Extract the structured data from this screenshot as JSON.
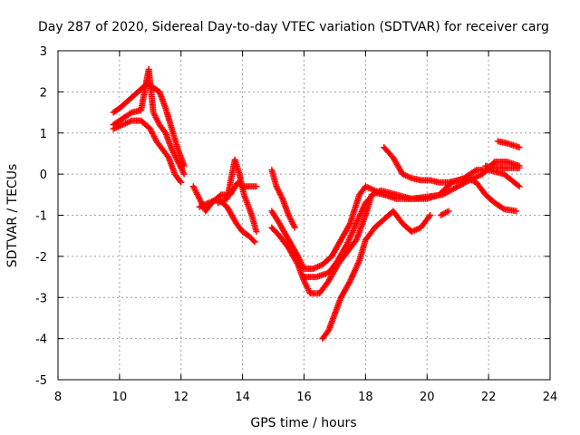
{
  "chart_data": {
    "type": "scatter",
    "title": "Day 287 of 2020, Sidereal Day-to-day VTEC variation (SDTVAR) for receiver carg",
    "xlabel": "GPS time / hours",
    "ylabel": "SDTVAR / TECUs",
    "xlim": [
      8,
      24
    ],
    "ylim": [
      -5,
      3
    ],
    "xticks": [
      8,
      10,
      12,
      14,
      16,
      18,
      20,
      22,
      24
    ],
    "yticks": [
      -5,
      -4,
      -3,
      -2,
      -1,
      0,
      1,
      2,
      3
    ],
    "grid": true,
    "marker": "+",
    "marker_color": "#ff0000",
    "series": [
      {
        "name": "track-1",
        "points": [
          [
            9.8,
            1.5
          ],
          [
            10.0,
            1.6
          ],
          [
            10.3,
            1.8
          ],
          [
            10.6,
            2.0
          ],
          [
            10.9,
            2.2
          ],
          [
            11.1,
            2.1
          ],
          [
            11.3,
            2.0
          ],
          [
            11.5,
            1.6
          ],
          [
            11.7,
            1.1
          ],
          [
            11.9,
            0.6
          ],
          [
            12.1,
            0.2
          ]
        ]
      },
      {
        "name": "track-2",
        "points": [
          [
            9.8,
            1.2
          ],
          [
            10.1,
            1.35
          ],
          [
            10.4,
            1.5
          ],
          [
            10.7,
            1.55
          ],
          [
            10.95,
            2.55
          ],
          [
            11.1,
            1.5
          ],
          [
            11.3,
            1.2
          ],
          [
            11.5,
            1.0
          ],
          [
            11.7,
            0.6
          ],
          [
            11.9,
            0.3
          ],
          [
            12.1,
            0.0
          ]
        ]
      },
      {
        "name": "track-3",
        "points": [
          [
            9.8,
            1.1
          ],
          [
            10.1,
            1.2
          ],
          [
            10.4,
            1.3
          ],
          [
            10.7,
            1.3
          ],
          [
            11.0,
            1.1
          ],
          [
            11.2,
            0.8
          ],
          [
            11.4,
            0.6
          ],
          [
            11.6,
            0.4
          ],
          [
            11.8,
            0.0
          ],
          [
            12.0,
            -0.2
          ]
        ]
      },
      {
        "name": "track-4",
        "points": [
          [
            12.4,
            -0.3
          ],
          [
            12.6,
            -0.6
          ],
          [
            12.8,
            -0.9
          ],
          [
            13.0,
            -0.7
          ],
          [
            13.3,
            -0.5
          ],
          [
            13.6,
            -0.5
          ],
          [
            13.85,
            -0.2
          ],
          [
            14.0,
            -0.3
          ],
          [
            14.2,
            -0.3
          ],
          [
            14.45,
            -0.3
          ]
        ]
      },
      {
        "name": "track-5",
        "points": [
          [
            12.6,
            -0.8
          ],
          [
            12.9,
            -0.7
          ],
          [
            13.2,
            -0.6
          ],
          [
            13.5,
            -0.8
          ],
          [
            13.8,
            -1.2
          ],
          [
            14.0,
            -1.4
          ],
          [
            14.2,
            -1.5
          ],
          [
            14.4,
            -1.65
          ]
        ]
      },
      {
        "name": "track-6",
        "points": [
          [
            13.2,
            -0.7
          ],
          [
            13.5,
            -0.6
          ],
          [
            13.75,
            0.35
          ],
          [
            13.9,
            0.0
          ],
          [
            14.05,
            -0.5
          ],
          [
            14.3,
            -1.0
          ],
          [
            14.45,
            -1.4
          ]
        ]
      },
      {
        "name": "track-7",
        "points": [
          [
            14.95,
            0.1
          ],
          [
            15.1,
            -0.3
          ],
          [
            15.3,
            -0.6
          ],
          [
            15.5,
            -1.0
          ],
          [
            15.7,
            -1.3
          ]
        ]
      },
      {
        "name": "track-8",
        "points": [
          [
            14.95,
            -0.9
          ],
          [
            15.2,
            -1.2
          ],
          [
            15.5,
            -1.6
          ],
          [
            15.8,
            -2.0
          ],
          [
            16.0,
            -2.3
          ],
          [
            16.3,
            -2.3
          ],
          [
            16.6,
            -2.2
          ],
          [
            16.9,
            -2.0
          ],
          [
            17.2,
            -1.6
          ],
          [
            17.5,
            -1.2
          ],
          [
            17.8,
            -0.5
          ],
          [
            18.0,
            -0.3
          ],
          [
            18.3,
            -0.4
          ],
          [
            18.6,
            -0.5
          ],
          [
            19.0,
            -0.6
          ],
          [
            19.5,
            -0.6
          ],
          [
            20.0,
            -0.55
          ],
          [
            20.5,
            -0.5
          ],
          [
            21.0,
            -0.3
          ],
          [
            21.5,
            -0.1
          ],
          [
            21.8,
            0.0
          ],
          [
            22.2,
            0.3
          ],
          [
            22.6,
            0.3
          ],
          [
            23.0,
            0.2
          ]
        ]
      },
      {
        "name": "track-9",
        "points": [
          [
            14.95,
            -1.3
          ],
          [
            15.2,
            -1.5
          ],
          [
            15.5,
            -1.8
          ],
          [
            15.8,
            -2.2
          ],
          [
            16.0,
            -2.6
          ],
          [
            16.2,
            -2.9
          ],
          [
            16.5,
            -2.9
          ],
          [
            16.8,
            -2.6
          ],
          [
            17.1,
            -2.2
          ],
          [
            17.4,
            -1.9
          ],
          [
            17.7,
            -1.6
          ],
          [
            18.0,
            -1.0
          ],
          [
            18.2,
            -0.5
          ],
          [
            18.5,
            -0.4
          ],
          [
            19.0,
            -0.5
          ],
          [
            19.5,
            -0.6
          ],
          [
            20.0,
            -0.6
          ],
          [
            20.4,
            -0.5
          ],
          [
            20.8,
            -0.2
          ],
          [
            21.2,
            -0.1
          ],
          [
            21.6,
            0.1
          ],
          [
            22.0,
            0.1
          ],
          [
            22.5,
            0.0
          ],
          [
            23.0,
            -0.3
          ]
        ]
      },
      {
        "name": "track-10",
        "points": [
          [
            16.6,
            -4.0
          ],
          [
            16.8,
            -3.8
          ],
          [
            17.0,
            -3.4
          ],
          [
            17.2,
            -3.0
          ],
          [
            17.5,
            -2.6
          ],
          [
            17.8,
            -2.1
          ],
          [
            18.0,
            -1.6
          ],
          [
            18.3,
            -1.3
          ],
          [
            18.6,
            -1.1
          ],
          [
            18.9,
            -0.9
          ],
          [
            19.2,
            -1.2
          ],
          [
            19.5,
            -1.4
          ],
          [
            19.8,
            -1.3
          ],
          [
            20.1,
            -1.0
          ]
        ]
      },
      {
        "name": "track-11",
        "points": [
          [
            16.0,
            -2.5
          ],
          [
            16.4,
            -2.5
          ],
          [
            16.8,
            -2.4
          ],
          [
            17.1,
            -2.1
          ],
          [
            17.4,
            -1.7
          ],
          [
            17.7,
            -1.2
          ],
          [
            18.0,
            -0.7
          ],
          [
            18.3,
            -0.45
          ],
          [
            18.6,
            -0.5
          ]
        ]
      },
      {
        "name": "track-12",
        "points": [
          [
            18.6,
            0.65
          ],
          [
            18.9,
            0.4
          ],
          [
            19.2,
            0.0
          ],
          [
            19.5,
            -0.1
          ],
          [
            19.8,
            -0.15
          ],
          [
            20.1,
            -0.15
          ],
          [
            20.4,
            -0.2
          ],
          [
            20.7,
            -0.2
          ],
          [
            21.0,
            -0.15
          ],
          [
            21.3,
            -0.1
          ],
          [
            21.6,
            -0.2
          ],
          [
            21.9,
            -0.5
          ],
          [
            22.2,
            -0.7
          ],
          [
            22.5,
            -0.85
          ],
          [
            22.9,
            -0.9
          ]
        ]
      },
      {
        "name": "track-13",
        "points": [
          [
            20.45,
            -1.0
          ],
          [
            20.7,
            -0.9
          ]
        ]
      },
      {
        "name": "track-14",
        "points": [
          [
            22.3,
            0.8
          ],
          [
            22.6,
            0.75
          ],
          [
            23.0,
            0.65
          ]
        ]
      },
      {
        "name": "track-15",
        "points": [
          [
            21.9,
            0.2
          ],
          [
            22.2,
            0.15
          ],
          [
            22.6,
            0.15
          ],
          [
            23.0,
            0.15
          ]
        ]
      }
    ]
  }
}
